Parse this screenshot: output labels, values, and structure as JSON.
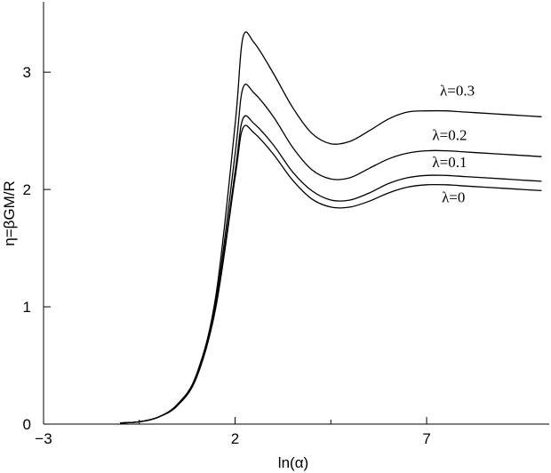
{
  "chart_data": {
    "type": "line",
    "xlabel": "ln(α)",
    "ylabel": "η=βGM/R",
    "xlim": [
      -3,
      10.2
    ],
    "ylim": [
      0,
      3.6
    ],
    "xticks": [
      {
        "value": -3,
        "label": "−3"
      },
      {
        "value": 2,
        "label": "2"
      },
      {
        "value": 7,
        "label": "7"
      }
    ],
    "yticks": [
      {
        "value": 0,
        "label": "0"
      },
      {
        "value": 1,
        "label": "1"
      },
      {
        "value": 2,
        "label": "2"
      },
      {
        "value": 3,
        "label": "3"
      }
    ],
    "grid": false,
    "legend": "none",
    "series": [
      {
        "name": "λ=0",
        "x": [
          -1,
          -0.5,
          0,
          0.5,
          1,
          1.5,
          2,
          2.2,
          2.5,
          3,
          3.5,
          4,
          4.5,
          5,
          5.5,
          6,
          6.5,
          7,
          7.5,
          8,
          8.5,
          9,
          9.5,
          10
        ],
        "y": [
          0.01,
          0.02,
          0.06,
          0.16,
          0.4,
          1.0,
          2.1,
          2.52,
          2.48,
          2.3,
          2.08,
          1.92,
          1.85,
          1.85,
          1.9,
          1.97,
          2.02,
          2.04,
          2.04,
          2.03,
          2.02,
          2.01,
          2.0,
          1.99
        ]
      },
      {
        "name": "λ=0.1",
        "x": [
          -1,
          -0.5,
          0,
          0.5,
          1,
          1.5,
          2,
          2.2,
          2.5,
          3,
          3.5,
          4,
          4.5,
          5,
          5.5,
          6,
          6.5,
          7,
          7.5,
          8,
          8.5,
          9,
          9.5,
          10
        ],
        "y": [
          0.01,
          0.02,
          0.06,
          0.16,
          0.41,
          1.02,
          2.15,
          2.6,
          2.56,
          2.38,
          2.15,
          1.99,
          1.91,
          1.91,
          1.97,
          2.05,
          2.1,
          2.12,
          2.12,
          2.11,
          2.1,
          2.09,
          2.08,
          2.07
        ]
      },
      {
        "name": "λ=0.2",
        "x": [
          -1,
          -0.5,
          0,
          0.5,
          1,
          1.5,
          2,
          2.2,
          2.5,
          3,
          3.5,
          4,
          4.5,
          5,
          5.5,
          6,
          6.5,
          7,
          7.5,
          8,
          8.5,
          9,
          9.5,
          10
        ],
        "y": [
          0.01,
          0.02,
          0.06,
          0.17,
          0.42,
          1.05,
          2.3,
          2.86,
          2.82,
          2.62,
          2.36,
          2.17,
          2.09,
          2.1,
          2.18,
          2.26,
          2.31,
          2.33,
          2.33,
          2.32,
          2.31,
          2.3,
          2.29,
          2.28
        ]
      },
      {
        "name": "λ=0.3",
        "x": [
          -1,
          -0.5,
          0,
          0.5,
          1,
          1.5,
          2,
          2.2,
          2.5,
          3,
          3.5,
          4,
          4.5,
          5,
          5.5,
          6,
          6.5,
          7,
          7.5,
          8,
          8.5,
          9,
          9.5,
          10
        ],
        "y": [
          0.01,
          0.02,
          0.06,
          0.17,
          0.43,
          1.1,
          2.55,
          3.29,
          3.25,
          2.99,
          2.7,
          2.48,
          2.39,
          2.41,
          2.5,
          2.6,
          2.66,
          2.67,
          2.67,
          2.66,
          2.65,
          2.64,
          2.63,
          2.62
        ]
      }
    ]
  }
}
